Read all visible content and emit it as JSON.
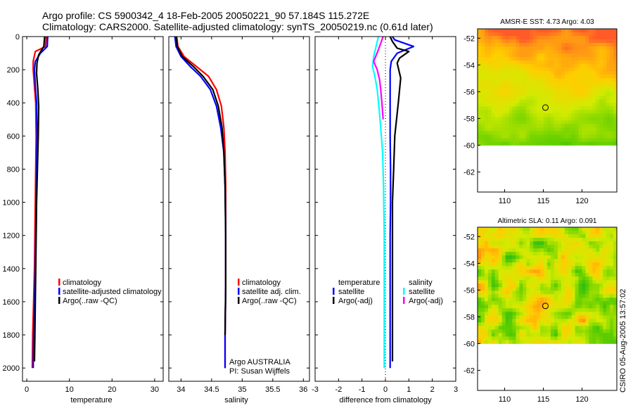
{
  "header": {
    "title_line1": "Argo profile: CS 5900342_4 18-Feb-2005 20050221_90 57.184S 115.272E",
    "title_line2": "Climatology: CARS2000. Satellite-adjusted climatology: synTS_20050219.nc (0.61d later)"
  },
  "colors": {
    "climatology": "#ff0000",
    "satellite": "#0000ff",
    "argo": "#000000",
    "satellite_salinity": "#00ffff",
    "argo_salinity_adj": "#ff00ff"
  },
  "chart_data": [
    {
      "id": "temperature-profile",
      "type": "line",
      "xlabel": "temperature",
      "ylabel": "",
      "xlim": [
        -1,
        32
      ],
      "ylim": [
        2080,
        0
      ],
      "y_inverted": true,
      "xticks": [
        0,
        10,
        20,
        30
      ],
      "yticks": [
        0,
        200,
        400,
        600,
        800,
        1000,
        1200,
        1400,
        1600,
        1800,
        2000
      ],
      "legend_position": "lower-center",
      "series": [
        {
          "name": "climatology",
          "color": "#ff0000",
          "x": [
            4.6,
            4.4,
            2.0,
            1.5,
            1.5,
            1.8,
            2.1,
            2.2,
            2.1,
            2.0,
            1.9,
            1.8,
            1.6,
            1.4,
            1.3
          ],
          "y": [
            0,
            60,
            90,
            150,
            200,
            300,
            400,
            600,
            800,
            1000,
            1200,
            1400,
            1600,
            1800,
            2000
          ]
        },
        {
          "name": "satellite-adjusted climatology",
          "color": "#0000ff",
          "x": [
            4.9,
            4.8,
            3.2,
            2.0,
            1.8,
            2.0,
            2.3,
            2.4,
            2.3,
            2.2,
            2.1,
            2.0,
            1.8,
            1.6,
            1.5
          ],
          "y": [
            0,
            60,
            100,
            150,
            200,
            300,
            400,
            600,
            800,
            1000,
            1200,
            1400,
            1600,
            1800,
            2000
          ]
        },
        {
          "name": "Argo(..raw -QC)",
          "color": "#000000",
          "x": [
            4.2,
            4.0,
            2.8,
            2.4,
            2.3,
            2.6,
            2.8,
            2.7,
            2.5,
            2.3,
            2.2,
            2.1,
            2.0,
            1.9,
            1.8
          ],
          "y": [
            0,
            60,
            110,
            160,
            220,
            320,
            420,
            600,
            800,
            1000,
            1200,
            1400,
            1600,
            1800,
            1960
          ]
        }
      ]
    },
    {
      "id": "salinity-profile",
      "type": "line",
      "xlabel": "salinity",
      "ylabel": "",
      "xlim": [
        33.8,
        36.1
      ],
      "ylim": [
        2080,
        0
      ],
      "y_inverted": true,
      "xticks": [
        34,
        34.5,
        35,
        35.5,
        36
      ],
      "legend_position": "lower-center",
      "annotation": [
        "Argo AUSTRALIA",
        "PI: Susan Wijffels"
      ],
      "series": [
        {
          "name": "climatology",
          "color": "#ff0000",
          "x": [
            33.93,
            33.95,
            34.05,
            34.25,
            34.45,
            34.58,
            34.66,
            34.7,
            34.72,
            34.73,
            34.73,
            34.73,
            34.72,
            34.72
          ],
          "y": [
            0,
            60,
            120,
            180,
            240,
            320,
            420,
            550,
            700,
            900,
            1200,
            1500,
            1800,
            2000
          ]
        },
        {
          "name": "satellite adj. clim.",
          "color": "#0000ff",
          "x": [
            33.9,
            33.92,
            34.0,
            34.15,
            34.32,
            34.48,
            34.58,
            34.65,
            34.7,
            34.72,
            34.73,
            34.73,
            34.72,
            34.72
          ],
          "y": [
            0,
            60,
            120,
            180,
            240,
            320,
            420,
            550,
            700,
            900,
            1200,
            1500,
            1800,
            2000
          ]
        },
        {
          "name": "Argo(..raw -QC)",
          "color": "#000000",
          "x": [
            33.92,
            33.94,
            34.02,
            34.2,
            34.36,
            34.52,
            34.61,
            34.67,
            34.7,
            34.72,
            34.73,
            34.73,
            34.72
          ],
          "y": [
            0,
            60,
            120,
            180,
            240,
            320,
            420,
            550,
            700,
            900,
            1200,
            1500,
            1800
          ]
        }
      ]
    },
    {
      "id": "difference-profile",
      "type": "line",
      "xlabel": "difference from climatology",
      "ylabel": "",
      "xlim": [
        -3,
        3
      ],
      "ylim": [
        2080,
        0
      ],
      "y_inverted": true,
      "xticks": [
        -3,
        -2,
        -1,
        0,
        1,
        2,
        3
      ],
      "reference_line_x": 0,
      "legend_left_title": "temperature",
      "legend_right_title": "salinity",
      "series": [
        {
          "name": "satellite",
          "group": "temperature",
          "color": "#0000ff",
          "x": [
            0.3,
            0.4,
            1.2,
            0.5,
            0.25,
            0.2,
            0.2,
            0.2,
            0.2,
            0.22,
            0.22,
            0.2,
            0.2,
            0.2,
            0.2
          ],
          "y": [
            0,
            20,
            60,
            100,
            150,
            200,
            300,
            400,
            600,
            800,
            1000,
            1200,
            1500,
            1800,
            2000
          ]
        },
        {
          "name": "Argo(-adj)",
          "group": "temperature",
          "color": "#000000",
          "x": [
            0.2,
            0.3,
            0.5,
            1.0,
            0.6,
            0.5,
            0.65,
            0.55,
            0.4,
            0.35,
            0.3,
            0.3,
            0.3,
            0.3,
            0.3
          ],
          "y": [
            0,
            30,
            70,
            90,
            130,
            160,
            250,
            400,
            600,
            800,
            1000,
            1200,
            1500,
            1800,
            1960
          ]
        },
        {
          "name": "satellite",
          "group": "salinity",
          "color": "#00ffff",
          "x": [
            -0.3,
            -0.4,
            -0.5,
            -0.55,
            -0.45,
            -0.35,
            -0.28,
            -0.2,
            -0.12,
            -0.08,
            -0.05,
            -0.05,
            -0.05,
            -0.05
          ],
          "y": [
            0,
            60,
            120,
            180,
            240,
            320,
            420,
            550,
            700,
            900,
            1200,
            1500,
            1800,
            2000
          ]
        },
        {
          "name": "Argo(-adj)",
          "group": "salinity",
          "color": "#ff00ff",
          "x": [
            -0.1,
            -0.3,
            -0.5,
            -0.35,
            -0.25,
            -0.2,
            -0.15,
            -0.1
          ],
          "y": [
            0,
            80,
            150,
            200,
            260,
            320,
            400,
            500
          ]
        }
      ]
    },
    {
      "id": "sst-map",
      "type": "heatmap",
      "title": "AMSR-E SST: 4.73 Argo: 4.03",
      "xlim": [
        106.5,
        124.5
      ],
      "ylim": [
        -63.5,
        -51.3
      ],
      "xticks": [
        110,
        115,
        120
      ],
      "yticks": [
        -52,
        -54,
        -56,
        -58,
        -60,
        -62
      ],
      "data_extent_y": [
        -60,
        -51.3
      ],
      "marker": {
        "lon": 115.272,
        "lat": -57.184
      },
      "value_range": [
        -1.5,
        8
      ]
    },
    {
      "id": "sla-map",
      "type": "heatmap",
      "title": "Altimetric SLA: 0.11 Argo: 0.091",
      "xlim": [
        106.5,
        124.5
      ],
      "ylim": [
        -63.5,
        -51.3
      ],
      "xticks": [
        110,
        115,
        120
      ],
      "yticks": [
        -52,
        -54,
        -56,
        -58,
        -60,
        -62
      ],
      "data_extent_y": [
        -60,
        -51.3
      ],
      "marker": {
        "lon": 115.272,
        "lat": -57.184
      },
      "value_range": [
        -0.3,
        0.3
      ]
    }
  ],
  "legends": {
    "temperature": [
      "climatology",
      "satellite-adjusted climatology",
      "Argo(..raw -QC)"
    ],
    "salinity": [
      "climatology",
      "satellite adj. clim.",
      "Argo(..raw -QC)"
    ],
    "difference_left": {
      "title": "temperature",
      "items": [
        "satellite",
        "Argo(-adj)"
      ]
    },
    "difference_right": {
      "title": "salinity",
      "items": [
        "satellite",
        "Argo(-adj)"
      ]
    }
  },
  "footer": {
    "credit": "CSIRO 05-Aug-2005 13:57:02"
  }
}
